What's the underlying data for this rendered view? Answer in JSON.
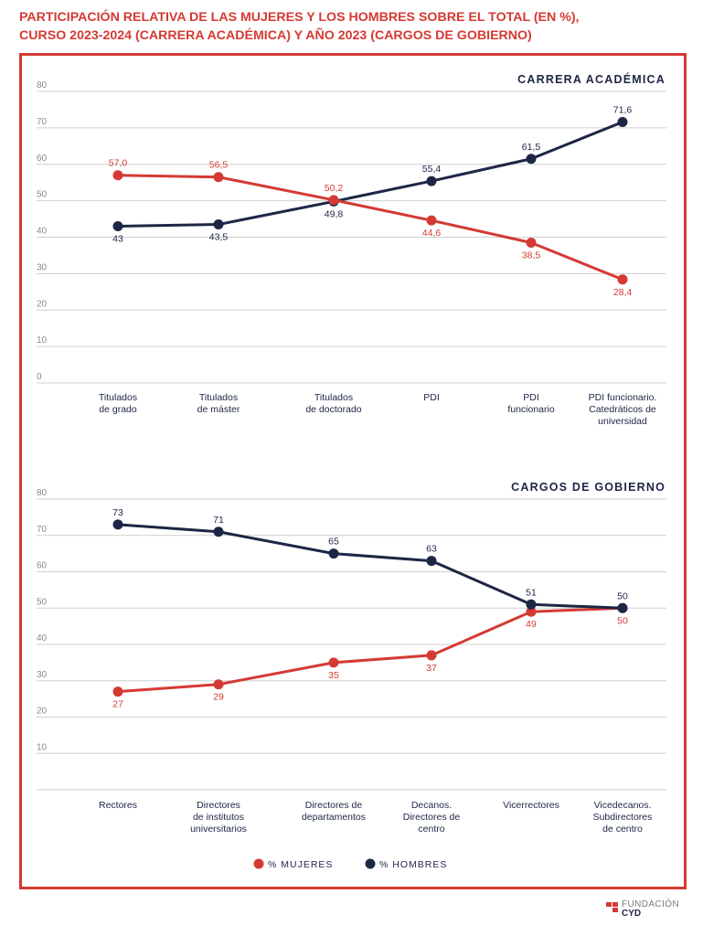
{
  "title_lines": [
    "PARTICIPACIÓN RELATIVA DE LAS MUJERES Y LOS HOMBRES SOBRE EL TOTAL (EN %),",
    "CURSO 2023-2024 (CARRERA ACADÉMICA) Y AÑO 2023 (CARGOS DE GOBIERNO)"
  ],
  "colors": {
    "mujeres": "#d43a33",
    "hombres": "#1d2645",
    "grid": "#cfcfcf",
    "axis_text": "#8a8a8a"
  },
  "legend": [
    {
      "label": "% MUJERES",
      "color": "#d43a33"
    },
    {
      "label": "% HOMBRES",
      "color": "#1d2645"
    }
  ],
  "logo": {
    "line1": "FUNDACIÓN",
    "line2": "CYD"
  },
  "chart_data": [
    {
      "type": "line",
      "title": "CARRERA ACADÉMICA",
      "ylim": [
        0,
        80
      ],
      "yticks": [
        "0",
        "10",
        "20",
        "30",
        "40",
        "50",
        "60",
        "70",
        "80"
      ],
      "grid": true,
      "categories": [
        [
          "Titulados",
          "de grado"
        ],
        [
          "Titulados",
          "de máster"
        ],
        [
          "Titulados",
          "de doctorado"
        ],
        [
          "PDI"
        ],
        [
          "PDI",
          "funcionario"
        ],
        [
          "PDI funcionario.",
          "Catedráticos de",
          "universidad"
        ]
      ],
      "series": [
        {
          "name": "% MUJERES",
          "values": [
            57.0,
            56.5,
            50.2,
            44.6,
            38.5,
            28.4
          ],
          "labels": [
            "57,0",
            "56,5",
            "50,2",
            "44,6",
            "38,5",
            "28,4"
          ],
          "label_pos": [
            "above",
            "above",
            "above",
            "below",
            "below",
            "below"
          ]
        },
        {
          "name": "% HOMBRES",
          "values": [
            43.0,
            43.5,
            49.8,
            55.4,
            61.5,
            71.6
          ],
          "labels": [
            "43",
            "43,5",
            "49,8",
            "55,4",
            "61,5",
            "71,6"
          ],
          "label_pos": [
            "below",
            "below",
            "below",
            "above",
            "above",
            "above"
          ]
        }
      ]
    },
    {
      "type": "line",
      "title": "CARGOS DE GOBIERNO",
      "ylim": [
        0,
        80
      ],
      "yticks": [
        "",
        "10",
        "20",
        "30",
        "40",
        "50",
        "60",
        "70",
        "80"
      ],
      "grid": true,
      "categories": [
        [
          "Rectores"
        ],
        [
          "Directores",
          "de institutos",
          "universitarios"
        ],
        [
          "Directores de",
          "departamentos"
        ],
        [
          "Decanos.",
          "Directores de",
          "centro"
        ],
        [
          "Vicerrectores"
        ],
        [
          "Vicedecanos.",
          "Subdirectores",
          "de centro"
        ]
      ],
      "series": [
        {
          "name": "% MUJERES",
          "values": [
            27,
            29,
            35,
            37,
            49,
            50
          ],
          "labels": [
            "27",
            "29",
            "35",
            "37",
            "49",
            "50"
          ],
          "label_pos": [
            "below",
            "below",
            "below",
            "below",
            "below",
            "below"
          ]
        },
        {
          "name": "% HOMBRES",
          "values": [
            73,
            71,
            65,
            63,
            51,
            50
          ],
          "labels": [
            "73",
            "71",
            "65",
            "63",
            "51",
            "50"
          ],
          "label_pos": [
            "above",
            "above",
            "above",
            "above",
            "above",
            "above"
          ]
        }
      ]
    }
  ]
}
